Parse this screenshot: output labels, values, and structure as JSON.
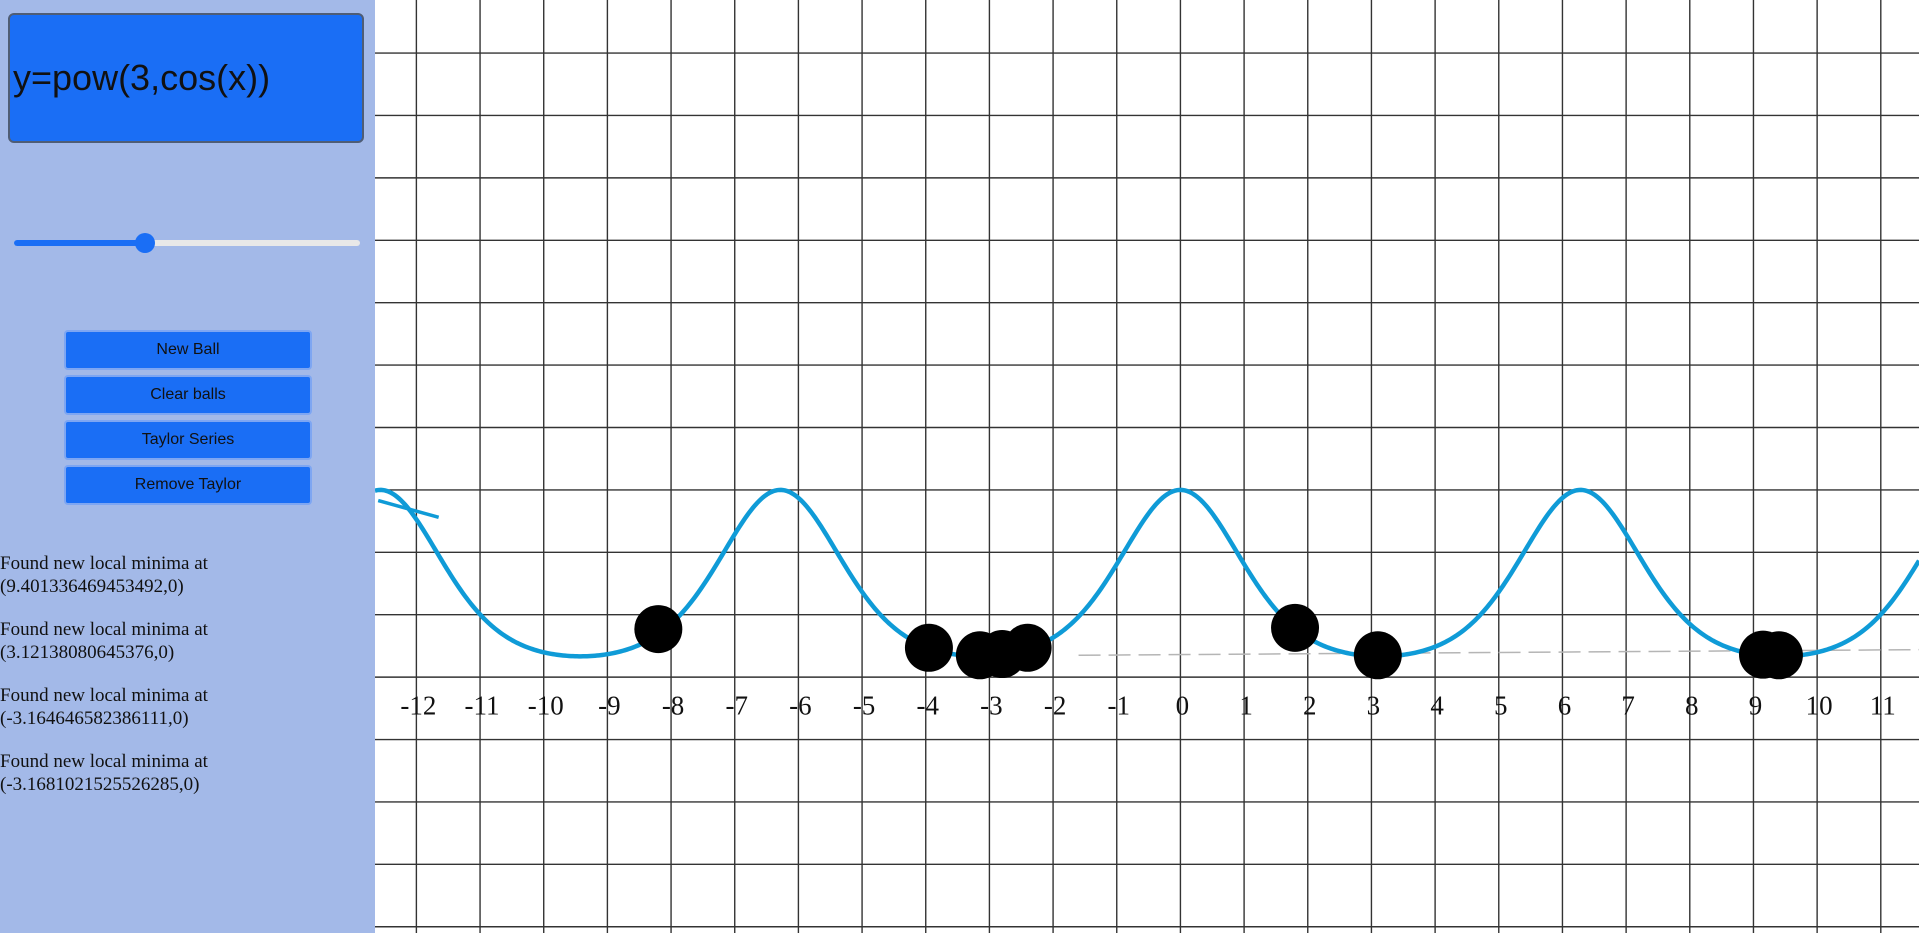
{
  "equation": {
    "value": "y=pow(3,cos(x))"
  },
  "slider": {
    "value": 0.38
  },
  "buttons": {
    "new_ball": "New Ball",
    "clear_balls": "Clear balls",
    "taylor_series": "Taylor Series",
    "remove_taylor": "Remove Taylor"
  },
  "log": [
    {
      "line1": "Found new local minima at",
      "line2": "(9.401336469453492,0)"
    },
    {
      "line1": "Found new local minima at",
      "line2": "(3.12138080645376,0)"
    },
    {
      "line1": "Found new local minima at",
      "line2": "(-3.164646582386111,0)"
    },
    {
      "line1": "Found new local minima at",
      "line2": "(-3.1681021525526285,0)"
    }
  ],
  "chart_data": {
    "type": "line",
    "function": "pow(3,cos(x))",
    "xlim": [
      -12.65,
      11.6
    ],
    "ylim": [
      -4.1,
      10.85
    ],
    "x_tick_labels": [
      "-12",
      "-11",
      "-10",
      "-9",
      "-8",
      "-7",
      "-6",
      "-5",
      "-4",
      "-3",
      "-2",
      "-1",
      "0",
      "1",
      "2",
      "3",
      "4",
      "5",
      "6",
      "7",
      "8",
      "9",
      "10",
      "11"
    ],
    "grid": true,
    "colors": {
      "curve": "#0f9bd7",
      "ball": "#000000",
      "grid": "#333333"
    },
    "balls": [
      {
        "x": -8.2,
        "y": 0.77
      },
      {
        "x": -3.95,
        "y": 0.47
      },
      {
        "x": -3.15,
        "y": 0.35
      },
      {
        "x": -2.8,
        "y": 0.37
      },
      {
        "x": -2.4,
        "y": 0.47
      },
      {
        "x": 1.8,
        "y": 0.79
      },
      {
        "x": 3.1,
        "y": 0.35
      },
      {
        "x": 9.15,
        "y": 0.36
      },
      {
        "x": 9.4,
        "y": 0.35
      }
    ],
    "taylor_line": {
      "x": [
        -1.6,
        11.6
      ],
      "y": [
        0.35,
        0.44
      ]
    },
    "taylor_fragment": {
      "x": [
        -12.6,
        -11.65
      ],
      "y": [
        2.83,
        2.56
      ]
    }
  }
}
